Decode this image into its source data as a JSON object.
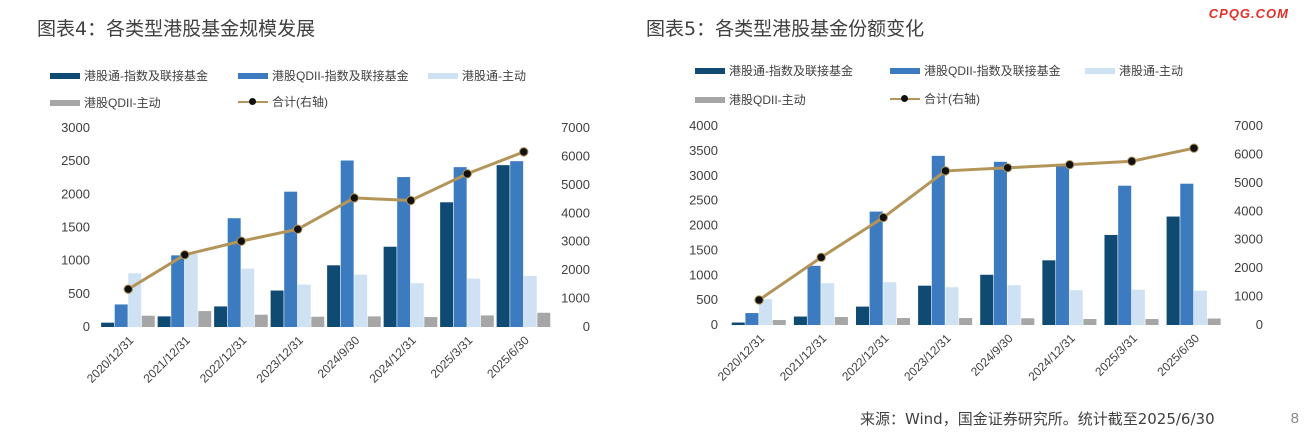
{
  "logo": "CPQG.COM",
  "source": "来源：Wind，国金证券研究所。统计截至2025/6/30",
  "page_number": "8",
  "colors": {
    "index_linked": "#0f4a73",
    "qdii_index": "#3c7bbf",
    "active": "#cfe2f3",
    "qdii_active": "#a6a6a6",
    "total_line": "#b3955a",
    "marker": "#111111"
  },
  "chart_data": [
    {
      "type": "bar",
      "title": "图表4：各类型港股基金规模发展",
      "categories": [
        "2020/12/31",
        "2021/12/31",
        "2022/12/31",
        "2023/12/31",
        "2024/9/30",
        "2024/12/31",
        "2025/3/31",
        "2025/6/30"
      ],
      "series": [
        {
          "name": "港股通-指数及联接基金",
          "values": [
            65,
            160,
            310,
            550,
            930,
            1210,
            1880,
            2440
          ]
        },
        {
          "name": "港股QDII-指数及联接基金",
          "values": [
            340,
            1080,
            1640,
            2040,
            2510,
            2260,
            2410,
            2500
          ]
        },
        {
          "name": "港股通-主动",
          "values": [
            810,
            1100,
            880,
            640,
            790,
            660,
            730,
            770
          ]
        },
        {
          "name": "港股QDII-主动",
          "values": [
            170,
            240,
            185,
            155,
            160,
            150,
            175,
            215
          ]
        },
        {
          "name": "合计(右轴)",
          "type": "line",
          "axis": "right",
          "values": [
            1330,
            2540,
            3020,
            3440,
            4540,
            4450,
            5390,
            6160
          ]
        }
      ],
      "ylim": [
        0,
        3000
      ],
      "yticks": [
        0,
        500,
        1000,
        1500,
        2000,
        2500,
        3000
      ],
      "y2lim": [
        0,
        7000
      ],
      "y2ticks": [
        0,
        1000,
        2000,
        3000,
        4000,
        5000,
        6000,
        7000
      ],
      "grid": false,
      "legend": "top"
    },
    {
      "type": "bar",
      "title": "图表5：各类型港股基金份额变化",
      "categories": [
        "2020/12/31",
        "2021/12/31",
        "2022/12/31",
        "2023/12/31",
        "2024/9/30",
        "2024/12/31",
        "2025/3/31",
        "2025/6/30"
      ],
      "series": [
        {
          "name": "港股通-指数及联接基金",
          "values": [
            50,
            170,
            370,
            790,
            1010,
            1300,
            1810,
            2180
          ]
        },
        {
          "name": "港股QDII-指数及联接基金",
          "values": [
            240,
            1190,
            2280,
            3400,
            3280,
            3230,
            2800,
            2840
          ]
        },
        {
          "name": "港股通-主动",
          "values": [
            520,
            840,
            860,
            760,
            800,
            700,
            710,
            690
          ]
        },
        {
          "name": "港股QDII-主动",
          "values": [
            100,
            160,
            140,
            140,
            135,
            120,
            120,
            130
          ]
        },
        {
          "name": "合计(右轴)",
          "type": "line",
          "axis": "right",
          "values": [
            880,
            2380,
            3780,
            5420,
            5530,
            5640,
            5760,
            6220
          ]
        }
      ],
      "ylim": [
        0,
        4000
      ],
      "yticks": [
        0,
        500,
        1000,
        1500,
        2000,
        2500,
        3000,
        3500,
        4000
      ],
      "y2lim": [
        0,
        7000
      ],
      "y2ticks": [
        0,
        1000,
        2000,
        3000,
        4000,
        5000,
        6000,
        7000
      ],
      "grid": false,
      "legend": "top"
    }
  ]
}
